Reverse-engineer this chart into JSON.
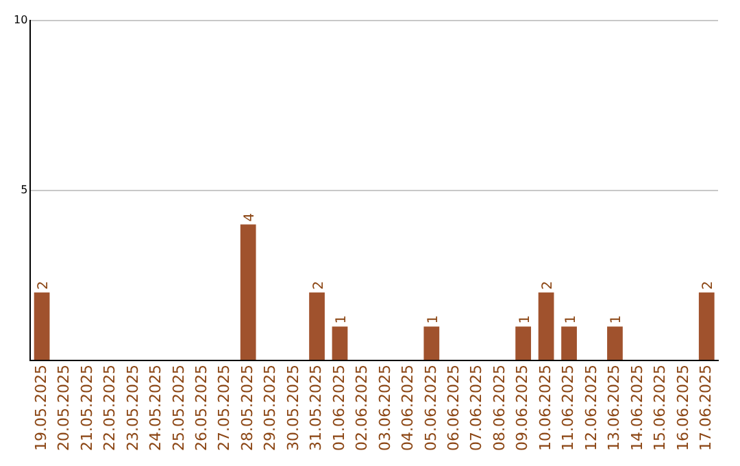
{
  "chart_data": {
    "type": "bar",
    "categories": [
      "19.05.2025",
      "20.05.2025",
      "21.05.2025",
      "22.05.2025",
      "23.05.2025",
      "24.05.2025",
      "25.05.2025",
      "26.05.2025",
      "27.05.2025",
      "28.05.2025",
      "29.05.2025",
      "30.05.2025",
      "31.05.2025",
      "01.06.2025",
      "02.06.2025",
      "03.06.2025",
      "04.06.2025",
      "05.06.2025",
      "06.06.2025",
      "07.06.2025",
      "08.06.2025",
      "09.06.2025",
      "10.06.2025",
      "11.06.2025",
      "12.06.2025",
      "13.06.2025",
      "14.06.2025",
      "15.06.2025",
      "16.06.2025",
      "17.06.2025"
    ],
    "values": [
      2,
      0,
      0,
      0,
      0,
      0,
      0,
      0,
      0,
      4,
      0,
      0,
      2,
      1,
      0,
      0,
      0,
      1,
      0,
      0,
      0,
      1,
      2,
      1,
      0,
      1,
      0,
      0,
      0,
      2
    ],
    "value_labels": [
      "2",
      null,
      null,
      null,
      null,
      null,
      null,
      null,
      null,
      "4",
      null,
      null,
      "2",
      "1",
      null,
      null,
      null,
      "1",
      null,
      null,
      null,
      "1",
      "2",
      "1",
      null,
      "1",
      null,
      null,
      null,
      "2"
    ],
    "color": "#a0522d",
    "ylim": [
      0,
      10
    ],
    "yticks": [
      {
        "value": 0,
        "label": null
      },
      5,
      10
    ],
    "grid": "y"
  }
}
